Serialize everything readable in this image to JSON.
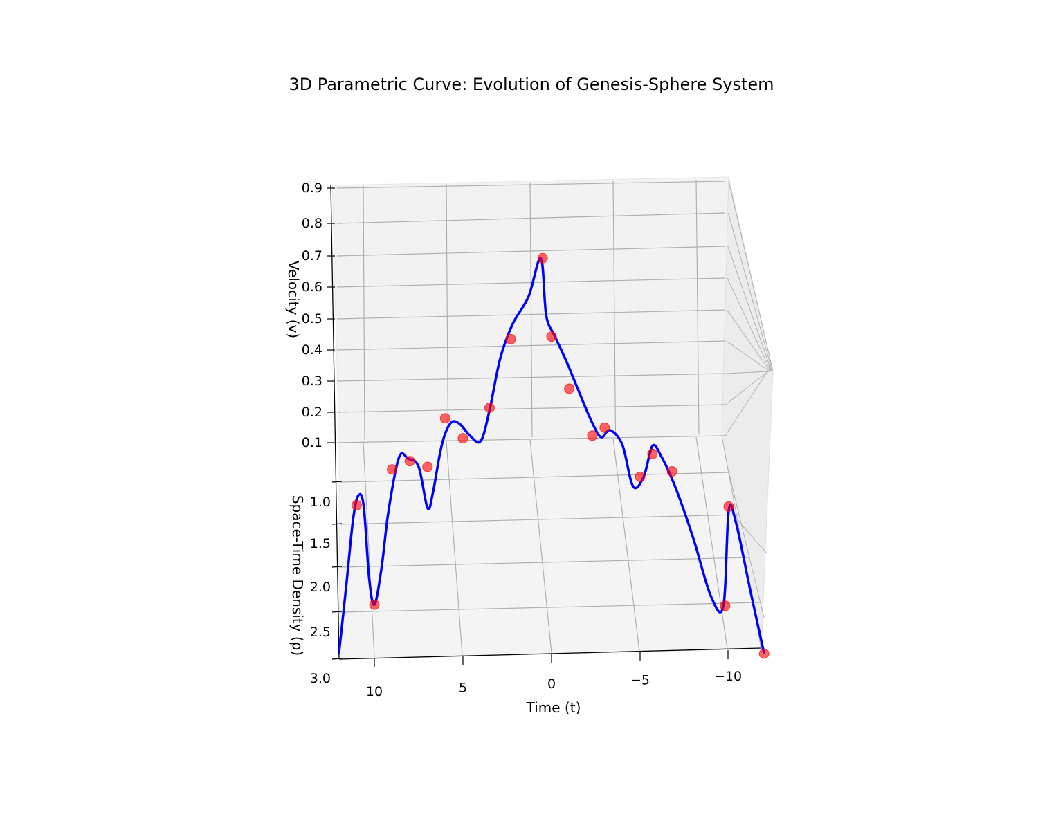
{
  "chart_data": {
    "type": "line",
    "projection": "3d",
    "title": "3D Parametric Curve: Evolution of Genesis-Sphere System",
    "xlabel": "Time (t)",
    "ylabel": "Space-Time Density (ρ)",
    "zlabel": "Velocity (v)",
    "x_ticks": [
      "10",
      "5",
      "0",
      "−5",
      "−10"
    ],
    "y_ticks": [
      "1.0",
      "1.5",
      "2.0",
      "2.5",
      "3.0"
    ],
    "z_ticks": [
      "0.1",
      "0.2",
      "0.3",
      "0.4",
      "0.5",
      "0.6",
      "0.7",
      "0.8",
      "0.9"
    ],
    "xlim": [
      -12,
      12
    ],
    "ylim": [
      0.5,
      3.0
    ],
    "zlim": [
      0.0,
      0.9
    ],
    "grid": true,
    "colors": {
      "curve": "#0000ff",
      "markers": "#ff0000",
      "pane": "#f2f2f2",
      "grid": "#b0b0b0"
    },
    "series": [
      {
        "kind": "curve",
        "points": [
          {
            "x": 12.0,
            "y": 3.0,
            "z": 0.0
          },
          {
            "x": 11.6,
            "y": 2.4,
            "z": 0.05
          },
          {
            "x": 11.2,
            "y": 1.6,
            "z": 0.06
          },
          {
            "x": 10.9,
            "y": 1.25,
            "z": 0.04
          },
          {
            "x": 10.6,
            "y": 1.35,
            "z": 0.03
          },
          {
            "x": 10.3,
            "y": 2.2,
            "z": 0.03
          },
          {
            "x": 10.0,
            "y": 2.6,
            "z": 0.05
          },
          {
            "x": 9.6,
            "y": 2.2,
            "z": 0.06
          },
          {
            "x": 9.2,
            "y": 1.5,
            "z": 0.06
          },
          {
            "x": 8.6,
            "y": 0.85,
            "z": 0.06
          },
          {
            "x": 8.1,
            "y": 0.9,
            "z": 0.07
          },
          {
            "x": 7.5,
            "y": 1.0,
            "z": 0.07
          },
          {
            "x": 7.0,
            "y": 1.5,
            "z": 0.07
          },
          {
            "x": 6.7,
            "y": 1.35,
            "z": 0.08
          },
          {
            "x": 6.2,
            "y": 0.8,
            "z": 0.09
          },
          {
            "x": 5.7,
            "y": 0.65,
            "z": 0.13
          },
          {
            "x": 5.2,
            "y": 0.75,
            "z": 0.16
          },
          {
            "x": 4.6,
            "y": 0.9,
            "z": 0.16
          },
          {
            "x": 4.0,
            "y": 1.0,
            "z": 0.17
          },
          {
            "x": 3.5,
            "y": 0.9,
            "z": 0.26
          },
          {
            "x": 2.9,
            "y": 0.75,
            "z": 0.42
          },
          {
            "x": 2.2,
            "y": 0.72,
            "z": 0.55
          },
          {
            "x": 1.3,
            "y": 0.72,
            "z": 0.66
          },
          {
            "x": 0.6,
            "y": 0.7,
            "z": 0.81
          },
          {
            "x": 0.3,
            "y": 0.7,
            "z": 0.58
          },
          {
            "x": -0.2,
            "y": 0.72,
            "z": 0.5
          },
          {
            "x": -0.9,
            "y": 0.75,
            "z": 0.4
          },
          {
            "x": -1.6,
            "y": 0.82,
            "z": 0.3
          },
          {
            "x": -2.3,
            "y": 0.9,
            "z": 0.21
          },
          {
            "x": -2.8,
            "y": 0.95,
            "z": 0.17
          },
          {
            "x": -3.3,
            "y": 0.8,
            "z": 0.15
          },
          {
            "x": -4.0,
            "y": 0.95,
            "z": 0.14
          },
          {
            "x": -4.6,
            "y": 1.4,
            "z": 0.12
          },
          {
            "x": -5.2,
            "y": 1.25,
            "z": 0.11
          },
          {
            "x": -5.7,
            "y": 0.9,
            "z": 0.12
          },
          {
            "x": -6.2,
            "y": 1.0,
            "z": 0.11
          },
          {
            "x": -7.0,
            "y": 1.35,
            "z": 0.1
          },
          {
            "x": -8.0,
            "y": 1.9,
            "z": 0.08
          },
          {
            "x": -9.0,
            "y": 2.5,
            "z": 0.05
          },
          {
            "x": -9.7,
            "y": 2.65,
            "z": 0.06
          },
          {
            "x": -10.0,
            "y": 1.5,
            "z": 0.06
          },
          {
            "x": -10.4,
            "y": 1.6,
            "z": 0.05
          },
          {
            "x": -11.2,
            "y": 2.3,
            "z": 0.02
          },
          {
            "x": -12.0,
            "y": 3.0,
            "z": 0.0
          }
        ]
      },
      {
        "kind": "markers",
        "points": [
          {
            "x": 11.0,
            "y": 1.4,
            "z": 0.05
          },
          {
            "x": 10.0,
            "y": 2.6,
            "z": 0.05
          },
          {
            "x": 9.0,
            "y": 1.0,
            "z": 0.06
          },
          {
            "x": 8.0,
            "y": 0.9,
            "z": 0.06
          },
          {
            "x": 7.0,
            "y": 1.0,
            "z": 0.07
          },
          {
            "x": 6.0,
            "y": 0.65,
            "z": 0.15
          },
          {
            "x": 5.0,
            "y": 0.9,
            "z": 0.15
          },
          {
            "x": 3.5,
            "y": 0.9,
            "z": 0.27
          },
          {
            "x": 2.3,
            "y": 0.72,
            "z": 0.49
          },
          {
            "x": 0.5,
            "y": 0.7,
            "z": 0.81
          },
          {
            "x": 0.0,
            "y": 0.72,
            "z": 0.5
          },
          {
            "x": -1.0,
            "y": 0.75,
            "z": 0.3
          },
          {
            "x": -2.3,
            "y": 0.9,
            "z": 0.16
          },
          {
            "x": -3.0,
            "y": 0.8,
            "z": 0.16
          },
          {
            "x": -5.0,
            "y": 1.25,
            "z": 0.11
          },
          {
            "x": -5.7,
            "y": 1.0,
            "z": 0.12
          },
          {
            "x": -6.8,
            "y": 1.15,
            "z": 0.1
          },
          {
            "x": -9.8,
            "y": 2.65,
            "z": 0.06
          },
          {
            "x": -10.0,
            "y": 1.45,
            "z": 0.06
          },
          {
            "x": -12.0,
            "y": 3.0,
            "z": 0.0
          }
        ]
      }
    ]
  }
}
